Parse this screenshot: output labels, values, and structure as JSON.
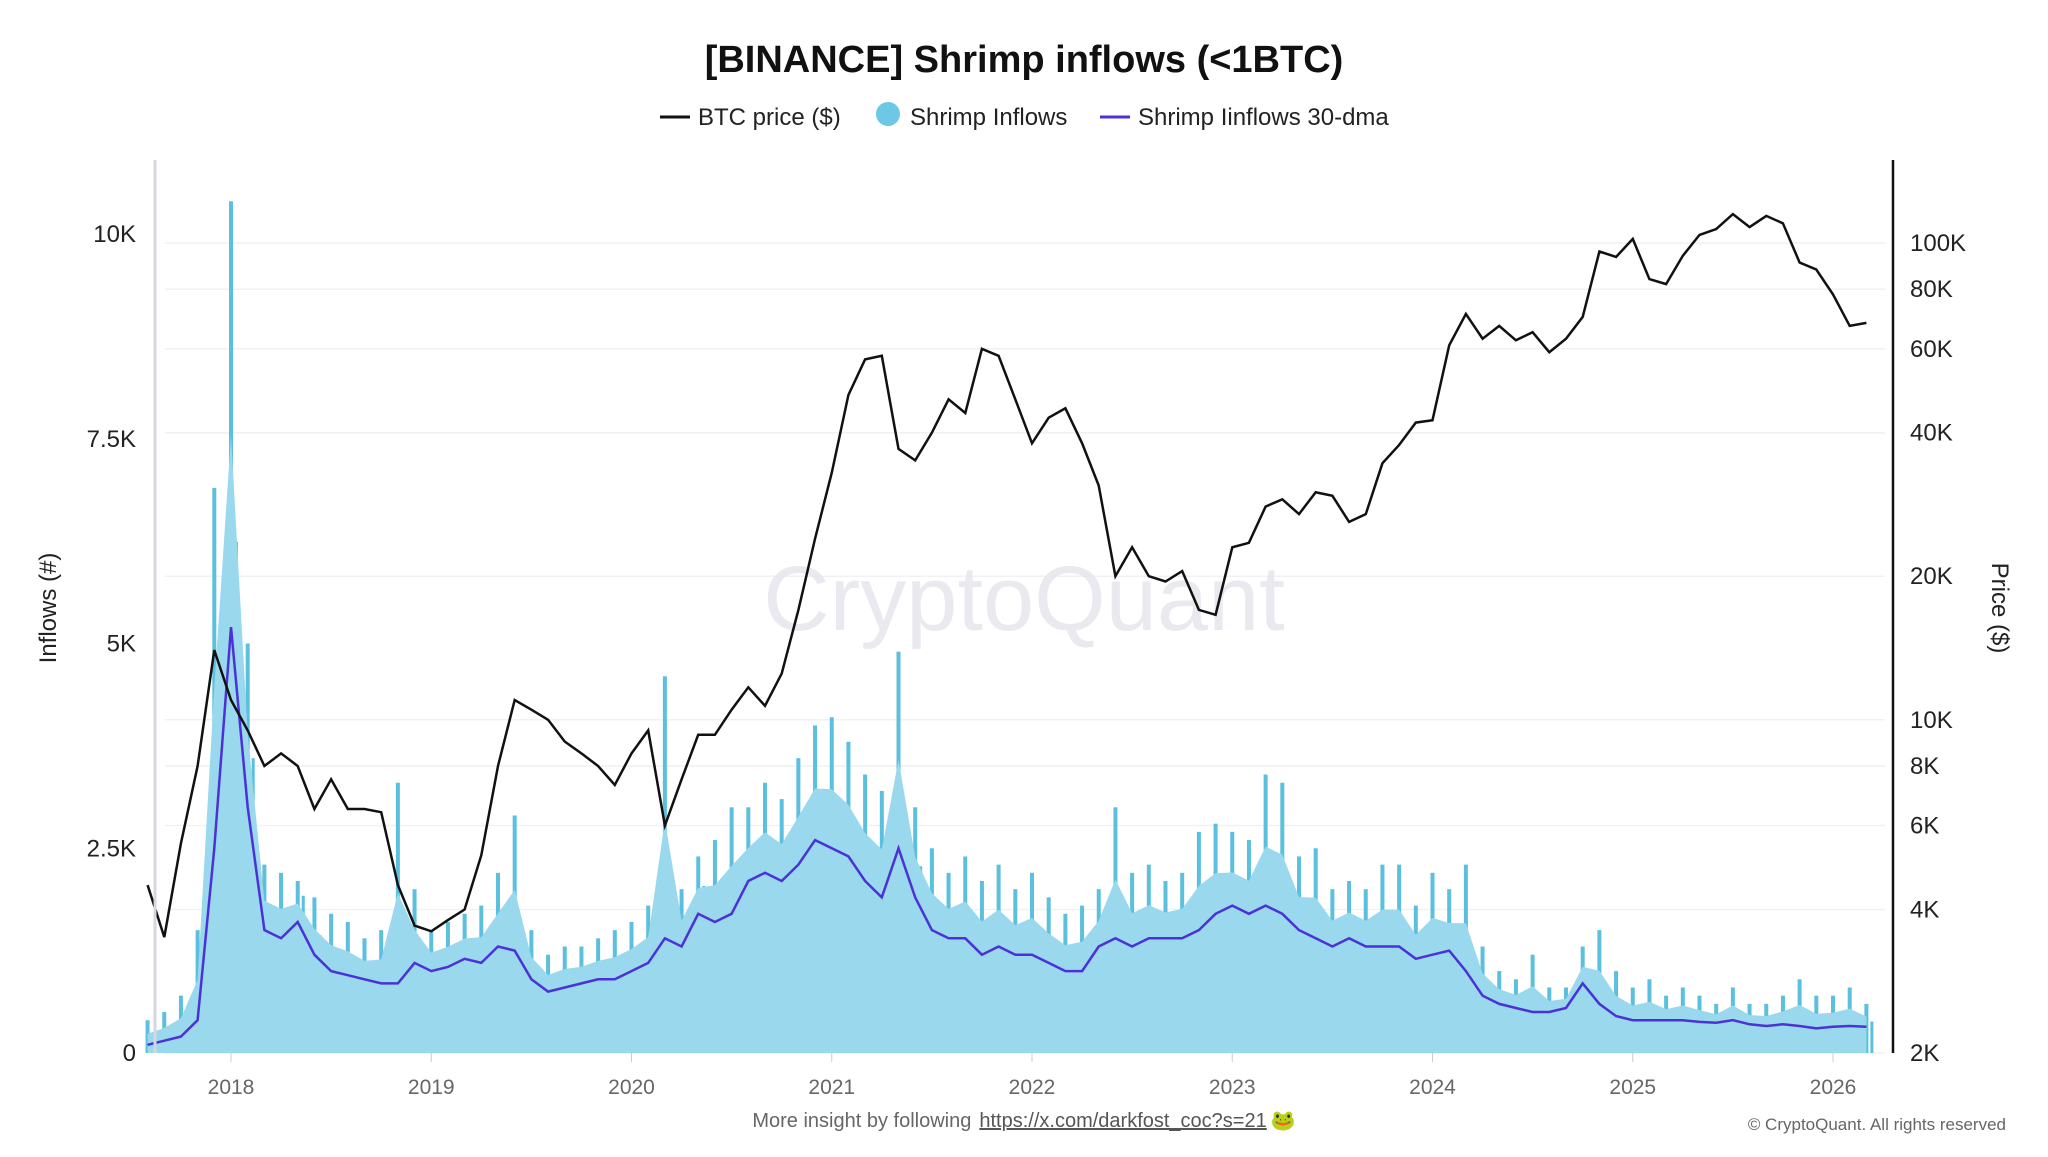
{
  "chart_data": {
    "type": "line",
    "title": "[BINANCE] Shrimp inflows (<1BTC)",
    "legend": [
      {
        "label": "BTC price ($)",
        "color": "#111111",
        "marker": "line"
      },
      {
        "label": "Shrimp Inflows",
        "color": "#6cc8e4",
        "marker": "circle"
      },
      {
        "label": "Shrimp Iinflows 30-dma",
        "color": "#4b32d6",
        "marker": "line"
      }
    ],
    "legend_placement": "top-center",
    "ylabel_left": "Inflows (#)",
    "ylabel_right": "Price ($)",
    "y_left_ticks": [
      "0",
      "2.5K",
      "5K",
      "7.5K",
      "10K"
    ],
    "y_left_tick_values": [
      0,
      2500,
      5000,
      7500,
      10000
    ],
    "y_left_range": [
      0,
      10600
    ],
    "y_right_scale": "log",
    "y_right_ticks": [
      "2K",
      "4K",
      "6K",
      "8K",
      "10K",
      "20K",
      "40K",
      "60K",
      "80K",
      "100K"
    ],
    "y_right_tick_values": [
      2000,
      4000,
      6000,
      8000,
      10000,
      20000,
      40000,
      60000,
      80000,
      100000
    ],
    "y_right_range": [
      2000,
      125000
    ],
    "x_ticks": [
      "2018",
      "2019",
      "2020",
      "2021",
      "2022",
      "2023",
      "2024",
      "2025",
      "2026"
    ],
    "x_range": [
      "2017-08",
      "2026-04"
    ],
    "grid": true,
    "x": [
      "2017-08",
      "2017-09",
      "2017-10",
      "2017-11",
      "2017-12",
      "2018-01",
      "2018-02",
      "2018-03",
      "2018-04",
      "2018-05",
      "2018-06",
      "2018-07",
      "2018-08",
      "2018-09",
      "2018-10",
      "2018-11",
      "2018-12",
      "2019-01",
      "2019-02",
      "2019-03",
      "2019-04",
      "2019-05",
      "2019-06",
      "2019-07",
      "2019-08",
      "2019-09",
      "2019-10",
      "2019-11",
      "2019-12",
      "2020-01",
      "2020-02",
      "2020-03",
      "2020-04",
      "2020-05",
      "2020-06",
      "2020-07",
      "2020-08",
      "2020-09",
      "2020-10",
      "2020-11",
      "2020-12",
      "2021-01",
      "2021-02",
      "2021-03",
      "2021-04",
      "2021-05",
      "2021-06",
      "2021-07",
      "2021-08",
      "2021-09",
      "2021-10",
      "2021-11",
      "2021-12",
      "2022-01",
      "2022-02",
      "2022-03",
      "2022-04",
      "2022-05",
      "2022-06",
      "2022-07",
      "2022-08",
      "2022-09",
      "2022-10",
      "2022-11",
      "2022-12",
      "2023-01",
      "2023-02",
      "2023-03",
      "2023-04",
      "2023-05",
      "2023-06",
      "2023-07",
      "2023-08",
      "2023-09",
      "2023-10",
      "2023-11",
      "2023-12",
      "2024-01",
      "2024-02",
      "2024-03",
      "2024-04",
      "2024-05",
      "2024-06",
      "2024-07",
      "2024-08",
      "2024-09",
      "2024-10",
      "2024-11",
      "2024-12",
      "2025-01",
      "2025-02",
      "2025-03",
      "2025-04",
      "2025-05",
      "2025-06",
      "2025-07",
      "2025-08",
      "2025-09",
      "2025-10",
      "2025-11",
      "2025-12",
      "2026-01",
      "2026-02",
      "2026-03"
    ],
    "series": [
      {
        "name": "BTC price ($)",
        "axis": "right",
        "color": "#111111",
        "values": [
          4500,
          3500,
          5500,
          8000,
          14000,
          11000,
          9500,
          8000,
          8500,
          8000,
          6500,
          7500,
          6500,
          6500,
          6400,
          4500,
          3700,
          3600,
          3800,
          4000,
          5200,
          8000,
          11000,
          10500,
          10000,
          9000,
          8500,
          8000,
          7300,
          8500,
          9500,
          6000,
          7500,
          9300,
          9300,
          10500,
          11700,
          10700,
          12500,
          17000,
          24000,
          33000,
          48000,
          57000,
          58000,
          37000,
          35000,
          40000,
          47000,
          44000,
          60000,
          58000,
          47000,
          38000,
          43000,
          45000,
          38000,
          31000,
          20000,
          23000,
          20000,
          19500,
          20500,
          17000,
          16600,
          23000,
          23500,
          28000,
          29000,
          27000,
          30000,
          29500,
          26000,
          27000,
          34500,
          37700,
          42000,
          42500,
          61000,
          71000,
          63000,
          67000,
          62500,
          65000,
          59000,
          63000,
          70000,
          96000,
          93500,
          102000,
          84000,
          82000,
          94000,
          104000,
          107000,
          115000,
          108000,
          114000,
          110000,
          91000,
          88000,
          78000,
          67000,
          68000
        ]
      },
      {
        "name": "Shrimp Inflows",
        "axis": "left",
        "color": "#6cc8e4",
        "values": [
          400,
          500,
          700,
          1500,
          6900,
          10400,
          5000,
          2300,
          2200,
          2100,
          1900,
          1700,
          1600,
          1400,
          1500,
          3300,
          2000,
          1500,
          1600,
          1700,
          1800,
          2200,
          2900,
          1500,
          1200,
          1300,
          1300,
          1400,
          1500,
          1600,
          1800,
          4600,
          2000,
          2400,
          2600,
          3000,
          3000,
          3300,
          3100,
          3600,
          4000,
          4100,
          3800,
          3400,
          3200,
          4900,
          3000,
          2500,
          2200,
          2400,
          2100,
          2300,
          2000,
          2200,
          1900,
          1700,
          1800,
          2000,
          3000,
          2200,
          2300,
          2100,
          2200,
          2700,
          2800,
          2700,
          2600,
          3400,
          3300,
          2400,
          2500,
          2000,
          2100,
          2000,
          2300,
          2300,
          1800,
          2200,
          2000,
          2300,
          1300,
          1000,
          900,
          1200,
          800,
          800,
          1300,
          1500,
          1000,
          800,
          900,
          700,
          800,
          700,
          600,
          800,
          600,
          600,
          700,
          900,
          700,
          700,
          800,
          600
        ]
      },
      {
        "name": "Shrimp Iinflows 30-dma",
        "axis": "left",
        "color": "#4b32d6",
        "values": [
          100,
          150,
          200,
          400,
          2500,
          5200,
          3000,
          1500,
          1400,
          1600,
          1200,
          1000,
          950,
          900,
          850,
          850,
          1100,
          1000,
          1050,
          1150,
          1100,
          1300,
          1250,
          900,
          750,
          800,
          850,
          900,
          900,
          1000,
          1100,
          1400,
          1300,
          1700,
          1600,
          1700,
          2100,
          2200,
          2100,
          2300,
          2600,
          2500,
          2400,
          2100,
          1900,
          2500,
          1900,
          1500,
          1400,
          1400,
          1200,
          1300,
          1200,
          1200,
          1100,
          1000,
          1000,
          1300,
          1400,
          1300,
          1400,
          1400,
          1400,
          1500,
          1700,
          1800,
          1700,
          1800,
          1700,
          1500,
          1400,
          1300,
          1400,
          1300,
          1300,
          1300,
          1150,
          1200,
          1250,
          1000,
          700,
          600,
          550,
          500,
          500,
          550,
          850,
          600,
          450,
          400,
          400,
          400,
          400,
          380,
          370,
          400,
          350,
          330,
          350,
          330,
          300,
          320,
          330,
          320
        ]
      }
    ]
  },
  "watermark": "CryptoQuant",
  "footer": {
    "insight_text": "More insight by following",
    "insight_link": "https://x.com/darkfost_coc?s=21",
    "copyright": "© CryptoQuant. All rights reserved"
  },
  "colors": {
    "inflow_bar": "#5bc0de",
    "inflow_area": "#9ad8ee",
    "dma": "#4b32d6",
    "price": "#111111"
  }
}
